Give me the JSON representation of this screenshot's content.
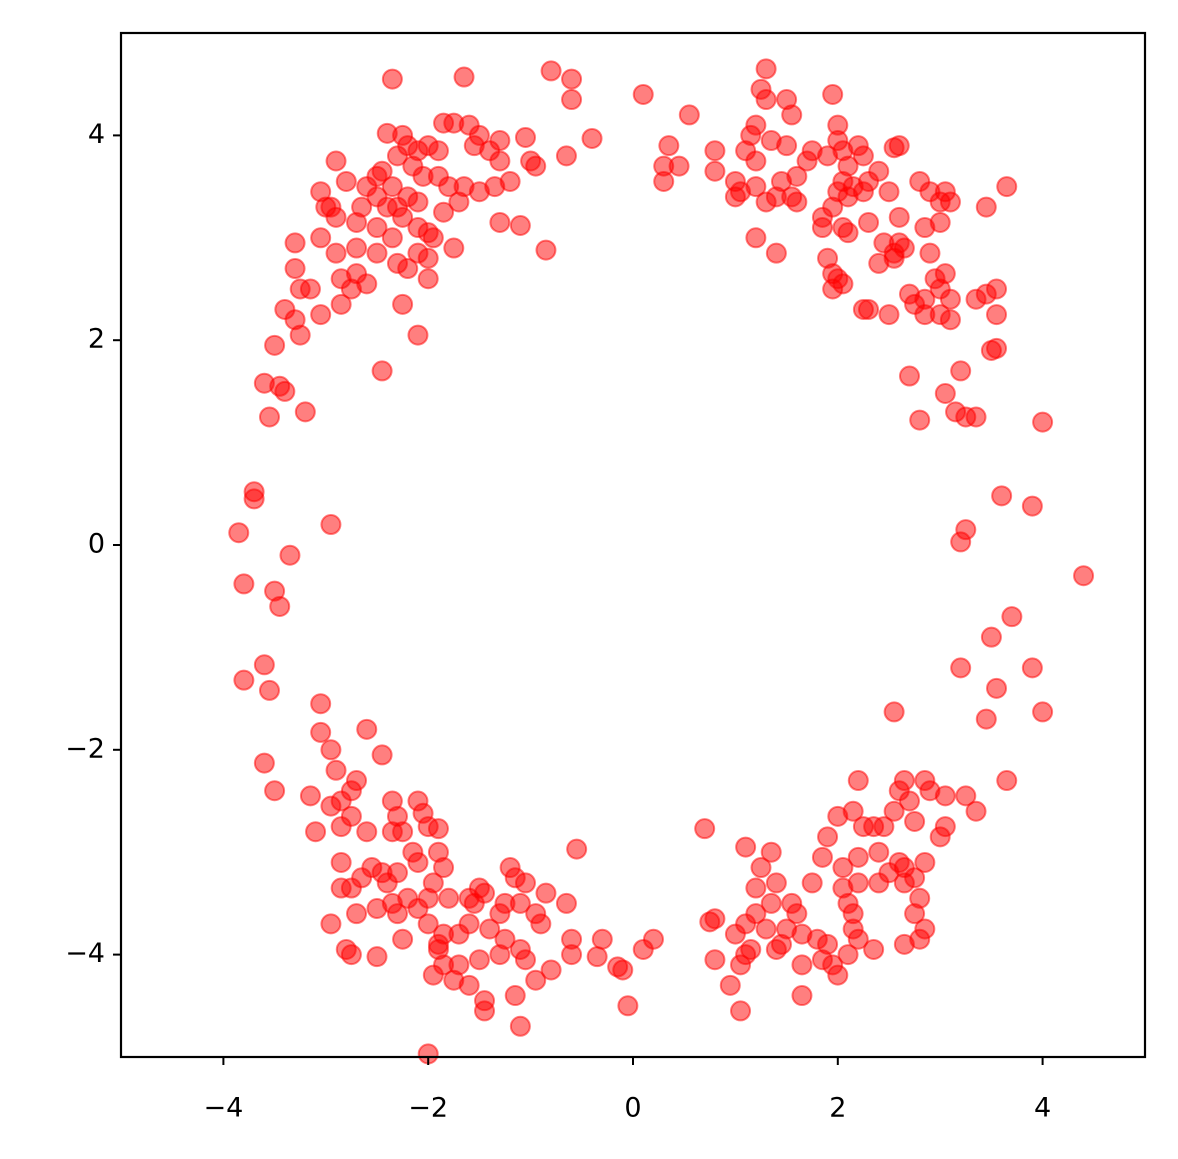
{
  "chart_data": {
    "type": "scatter",
    "color": "#ff0000",
    "alpha": 0.5,
    "xlim": [
      -5,
      5
    ],
    "ylim": [
      -5,
      5
    ],
    "xticks": [
      {
        "value": -4,
        "label": "−4"
      },
      {
        "value": -2,
        "label": "−2"
      },
      0,
      2,
      4
    ],
    "yticks": [
      {
        "value": -4,
        "label": "−4"
      },
      {
        "value": -2,
        "label": "−2"
      },
      0,
      2,
      4
    ],
    "x": [
      -2.35,
      -1.65,
      -0.8,
      -0.6,
      -0.6,
      -0.4,
      -0.65,
      -0.85,
      -1.1,
      -1.3,
      -1.05,
      -1.3,
      -1.35,
      -1.5,
      -1.6,
      -1.75,
      -1.85,
      -1.55,
      -1.4,
      -1.65,
      -1.7,
      -1.75,
      -2.0,
      -1.95,
      -2.0,
      -2.0,
      -2.1,
      -2.1,
      -2.25,
      -2.45,
      -2.3,
      -2.35,
      -2.5,
      -2.6,
      -2.7,
      -2.75,
      -2.85,
      -2.85,
      -2.9,
      -2.95,
      -2.9,
      -3.05,
      -3.0,
      -3.05,
      -2.9,
      -3.05,
      -3.3,
      -3.3,
      -3.25,
      -3.15,
      -3.4,
      -3.3,
      -3.25,
      -3.5,
      -3.6,
      -3.45,
      -3.4,
      -3.55,
      -3.2,
      -2.3,
      -2.4,
      -2.2,
      -2.35,
      -2.25,
      -2.3,
      -2.2,
      -2.25,
      -2.4,
      -2.15,
      -2.1,
      -2.0,
      -1.9,
      -2.05,
      -1.9,
      -1.8,
      -1.85,
      -2.1,
      -2.1,
      -2.5,
      -2.6,
      -2.65,
      -2.7,
      -2.5,
      -2.45,
      -2.8,
      -2.7,
      -2.5,
      -2.2,
      -1.5,
      -1.3,
      -1.2,
      -1.0,
      -0.95,
      0.1,
      0.35,
      0.3,
      0.45,
      0.3,
      0.55,
      0.8,
      0.8,
      1.3,
      1.25,
      1.3,
      1.5,
      1.55,
      1.2,
      1.15,
      1.35,
      1.5,
      1.1,
      1.2,
      1.0,
      1.05,
      1.0,
      1.3,
      1.4,
      1.2,
      1.45,
      1.55,
      1.6,
      1.6,
      1.2,
      1.4,
      1.7,
      1.75,
      1.9,
      1.95,
      2.0,
      2.0,
      2.05,
      2.2,
      2.25,
      2.1,
      2.05,
      2.0,
      2.1,
      2.15,
      2.25,
      2.3,
      1.95,
      1.85,
      2.05,
      1.85,
      2.1,
      2.6,
      2.55,
      2.4,
      2.5,
      2.8,
      2.9,
      3.05,
      3.1,
      3.0,
      2.6,
      2.85,
      3.0,
      2.3,
      2.45,
      2.55,
      2.65,
      2.6,
      2.55,
      2.4,
      2.9,
      3.05,
      2.95,
      2.7,
      2.75,
      2.85,
      3.0,
      3.1,
      2.85,
      3.0,
      3.1,
      3.35,
      3.45,
      3.55,
      3.55,
      3.5,
      3.55,
      2.25,
      2.3,
      2.5,
      1.9,
      1.95,
      2.0,
      1.95,
      2.05,
      2.7,
      3.2,
      3.05,
      3.15,
      3.25,
      3.35,
      2.8,
      3.45,
      3.65,
      4.0,
      3.6,
      3.9,
      3.25,
      3.2,
      4.4,
      3.7,
      3.5,
      3.2,
      3.9,
      3.55,
      2.55,
      3.45,
      4.0,
      3.65,
      -3.7,
      -3.7,
      -3.85,
      -2.95,
      -3.35,
      -3.8,
      -3.5,
      -3.45,
      -3.6,
      -3.8,
      -3.55,
      -3.6,
      -3.5,
      -3.05,
      -3.05,
      -2.95,
      -2.9,
      -2.6,
      -2.45,
      -2.75,
      -2.7,
      -2.85,
      -2.95,
      -3.15,
      -2.75,
      -2.85,
      -3.1,
      -2.6,
      -2.35,
      -2.1,
      -2.05,
      -2.3,
      -2.35,
      -2.25,
      -2.0,
      -1.9,
      -2.85,
      -2.55,
      -2.45,
      -2.85,
      -2.75,
      -2.65,
      -2.4,
      -2.3,
      -2.15,
      -2.1,
      -1.9,
      -1.85,
      -1.95,
      -2.2,
      -2.35,
      -2.3,
      -2.1,
      -2.0,
      -1.8,
      -2.0,
      -2.25,
      -1.9,
      -1.85,
      -1.7,
      -1.6,
      -1.5,
      -1.45,
      -1.55,
      -1.6,
      -1.4,
      -1.2,
      -1.15,
      -1.05,
      -1.3,
      -1.25,
      -1.1,
      -0.95,
      -0.85,
      -0.65,
      -0.9,
      -1.25,
      -1.1,
      -1.05,
      -1.3,
      -1.5,
      -1.7,
      -1.85,
      -1.95,
      -1.9,
      -1.75,
      -1.6,
      -1.45,
      -1.45,
      -1.15,
      -1.1,
      -0.95,
      -0.8,
      -0.6,
      -0.6,
      -0.55,
      -2.95,
      -2.8,
      -2.75,
      -2.5,
      -2.7,
      -2.5,
      -2.0,
      -0.3,
      -0.35,
      -0.15,
      -0.1,
      -0.05,
      0.1,
      0.2,
      0.7,
      0.75,
      0.8,
      0.8,
      0.95,
      1.05,
      1.05,
      1.1,
      1.15,
      1.0,
      1.1,
      1.1,
      1.2,
      1.25,
      1.35,
      1.4,
      1.35,
      1.2,
      1.3,
      1.4,
      1.5,
      1.55,
      1.6,
      1.45,
      1.65,
      1.65,
      1.65,
      1.85,
      1.9,
      1.95,
      2.0,
      2.1,
      1.8,
      1.75,
      1.85,
      1.9,
      2.0,
      2.05,
      2.05,
      2.15,
      2.1,
      2.15,
      2.2,
      2.2,
      2.2,
      2.25,
      2.15,
      2.2,
      2.35,
      2.4,
      2.4,
      2.35,
      2.5,
      2.45,
      2.55,
      2.6,
      2.65,
      2.7,
      2.75,
      2.85,
      2.9,
      3.05,
      3.25,
      3.35,
      3.05,
      3.0,
      2.65,
      2.75,
      2.85,
      2.65,
      2.8,
      2.75,
      2.65,
      2.8,
      2.85,
      2.6
    ],
    "values": [
      4.55,
      4.57,
      4.63,
      4.55,
      4.35,
      3.97,
      3.8,
      2.88,
      3.12,
      3.15,
      3.98,
      3.95,
      3.5,
      4.0,
      4.1,
      4.12,
      4.12,
      3.9,
      3.85,
      3.5,
      3.35,
      2.9,
      3.05,
      3.0,
      2.6,
      2.8,
      2.85,
      2.05,
      2.35,
      1.7,
      2.75,
      3.0,
      3.1,
      2.55,
      2.65,
      2.5,
      2.6,
      2.35,
      3.2,
      3.3,
      3.75,
      3.45,
      3.3,
      3.0,
      2.85,
      2.25,
      2.95,
      2.7,
      2.5,
      2.5,
      2.3,
      2.2,
      2.05,
      1.95,
      1.58,
      1.55,
      1.5,
      1.25,
      1.3,
      3.3,
      3.3,
      3.4,
      3.5,
      3.2,
      3.8,
      3.9,
      4.0,
      4.02,
      3.7,
      3.85,
      3.9,
      3.85,
      3.6,
      3.6,
      3.5,
      3.25,
      3.35,
      3.1,
      3.6,
      3.5,
      3.3,
      3.15,
      3.4,
      3.65,
      3.55,
      2.9,
      2.85,
      2.7,
      3.45,
      3.75,
      3.55,
      3.75,
      3.7,
      4.4,
      3.9,
      3.7,
      3.7,
      3.55,
      4.2,
      3.85,
      3.65,
      4.65,
      4.45,
      4.35,
      4.35,
      4.2,
      4.1,
      4.0,
      3.95,
      3.9,
      3.85,
      3.75,
      3.55,
      3.45,
      3.4,
      3.35,
      3.4,
      3.5,
      3.55,
      3.4,
      3.6,
      3.35,
      3.0,
      2.85,
      3.75,
      3.85,
      3.8,
      4.4,
      4.1,
      3.95,
      3.85,
      3.9,
      3.8,
      3.7,
      3.55,
      3.45,
      3.4,
      3.5,
      3.45,
      3.55,
      3.3,
      3.2,
      3.1,
      3.1,
      3.05,
      3.9,
      3.88,
      3.65,
      3.45,
      3.55,
      3.45,
      3.45,
      3.35,
      3.35,
      3.2,
      3.1,
      3.15,
      3.15,
      2.95,
      2.85,
      2.9,
      2.95,
      2.8,
      2.75,
      2.85,
      2.65,
      2.6,
      2.45,
      2.35,
      2.4,
      2.5,
      2.4,
      2.25,
      2.25,
      2.2,
      2.4,
      2.45,
      2.5,
      2.25,
      1.9,
      1.92,
      2.3,
      2.3,
      2.25,
      2.8,
      2.65,
      2.6,
      2.5,
      2.55,
      1.65,
      1.7,
      1.48,
      1.3,
      1.25,
      1.25,
      1.22,
      3.3,
      3.5,
      1.2,
      0.48,
      0.38,
      0.15,
      0.03,
      -0.3,
      -0.7,
      -0.9,
      -1.2,
      -1.2,
      -1.4,
      -1.63,
      -1.7,
      -1.63,
      -2.3,
      0.52,
      0.45,
      0.12,
      0.2,
      -0.1,
      -0.38,
      -0.45,
      -0.6,
      -1.17,
      -1.32,
      -1.42,
      -2.13,
      -2.4,
      -1.55,
      -1.83,
      -2.0,
      -2.2,
      -1.8,
      -2.05,
      -2.4,
      -2.3,
      -2.5,
      -2.55,
      -2.45,
      -2.65,
      -2.75,
      -2.8,
      -2.8,
      -2.5,
      -2.5,
      -2.62,
      -2.65,
      -2.8,
      -2.8,
      -2.75,
      -2.77,
      -3.1,
      -3.15,
      -3.2,
      -3.35,
      -3.35,
      -3.25,
      -3.3,
      -3.2,
      -3.0,
      -3.1,
      -3.0,
      -3.15,
      -3.3,
      -3.45,
      -3.5,
      -3.6,
      -3.55,
      -3.45,
      -3.45,
      -3.7,
      -3.85,
      -3.9,
      -3.8,
      -3.8,
      -3.45,
      -3.35,
      -3.4,
      -3.5,
      -3.7,
      -3.75,
      -3.15,
      -3.25,
      -3.3,
      -3.6,
      -3.5,
      -3.5,
      -3.6,
      -3.4,
      -3.5,
      -3.7,
      -3.85,
      -3.95,
      -4.05,
      -4.0,
      -4.05,
      -4.1,
      -4.1,
      -4.2,
      -3.95,
      -4.25,
      -4.3,
      -4.45,
      -4.55,
      -4.4,
      -4.7,
      -4.25,
      -4.15,
      -3.85,
      -4.0,
      -2.97,
      -3.7,
      -3.95,
      -4.0,
      -4.02,
      -3.6,
      -3.55,
      -4.97,
      -3.85,
      -4.02,
      -4.12,
      -4.15,
      -4.5,
      -3.95,
      -3.85,
      -2.77,
      -3.68,
      -3.65,
      -4.05,
      -4.3,
      -4.55,
      -4.1,
      -4.0,
      -3.95,
      -3.8,
      -3.7,
      -2.95,
      -3.35,
      -3.15,
      -3.0,
      -3.3,
      -3.5,
      -3.6,
      -3.75,
      -3.95,
      -3.75,
      -3.5,
      -3.6,
      -3.9,
      -3.8,
      -4.1,
      -4.4,
      -4.05,
      -3.9,
      -4.1,
      -4.2,
      -4.0,
      -3.85,
      -3.3,
      -3.05,
      -2.85,
      -2.65,
      -3.15,
      -3.35,
      -3.6,
      -3.5,
      -3.75,
      -3.85,
      -3.3,
      -3.05,
      -2.75,
      -2.6,
      -2.3,
      -2.75,
      -3.0,
      -3.3,
      -3.95,
      -3.2,
      -2.75,
      -2.6,
      -2.4,
      -2.3,
      -2.5,
      -2.7,
      -2.3,
      -2.4,
      -2.45,
      -2.45,
      -2.6,
      -2.75,
      -2.85,
      -3.15,
      -3.25,
      -3.1,
      -3.3,
      -3.45,
      -3.6,
      -3.9,
      -3.85,
      -3.75,
      -3.1
    ]
  }
}
